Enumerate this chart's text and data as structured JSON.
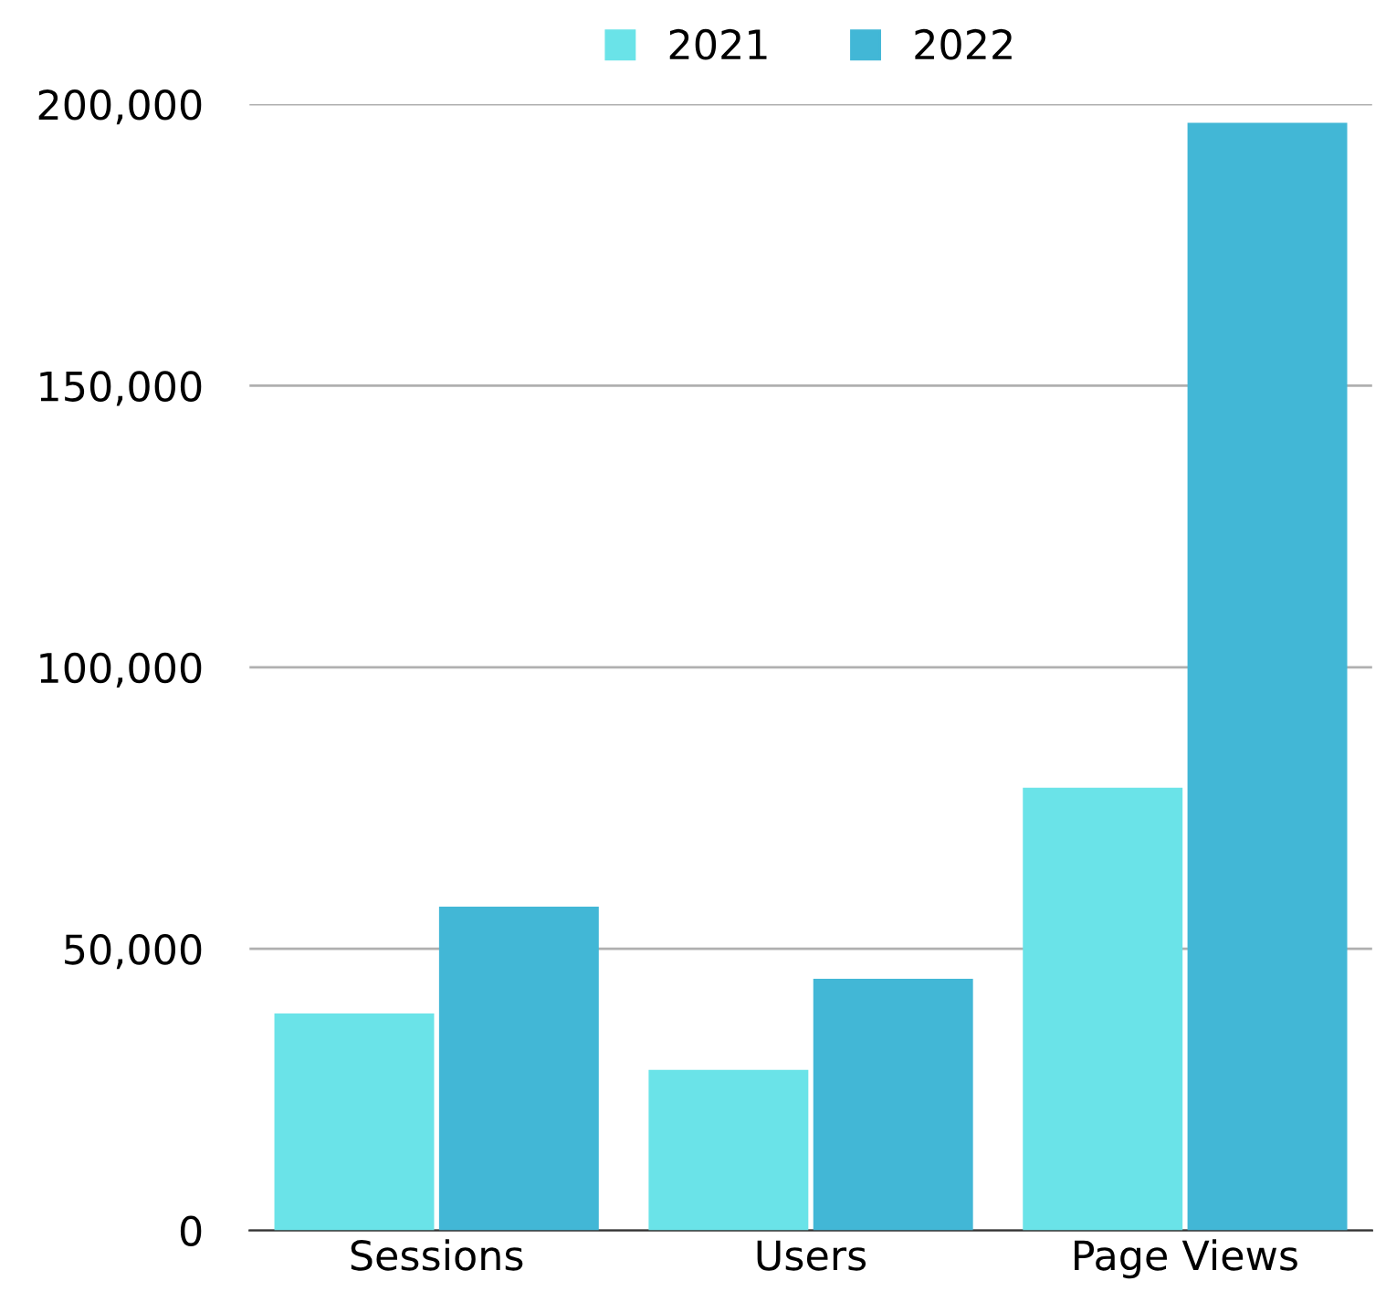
{
  "chart_data": {
    "type": "bar",
    "categories": [
      "Sessions",
      "Users",
      "Page Views"
    ],
    "series": [
      {
        "name": "2021",
        "color": "#6ae3e8",
        "values": [
          38500,
          28500,
          78600
        ]
      },
      {
        "name": "2022",
        "color": "#42b7d6",
        "values": [
          57500,
          44700,
          196700
        ]
      }
    ],
    "ylim": [
      0,
      200000
    ],
    "yticks": [
      {
        "value": 0,
        "label": "0"
      },
      {
        "value": 50000,
        "label": "50,000"
      },
      {
        "value": 100000,
        "label": "100,000"
      },
      {
        "value": 150000,
        "label": "150,000"
      },
      {
        "value": 200000,
        "label": "200,000"
      }
    ],
    "grid": "y",
    "legend": "top"
  }
}
